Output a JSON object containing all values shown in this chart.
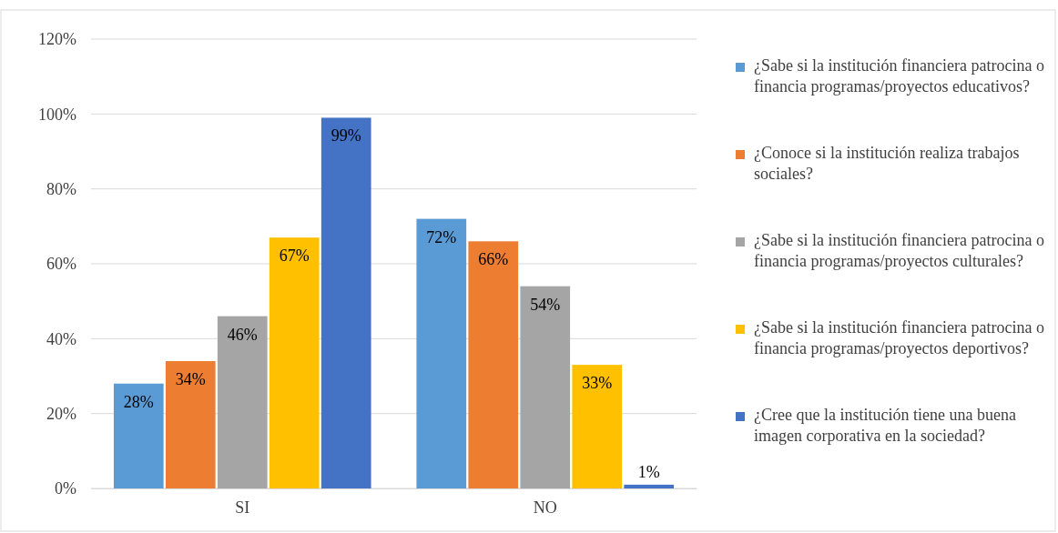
{
  "chart_data": {
    "type": "bar",
    "categories": [
      "SI",
      "NO"
    ],
    "series": [
      {
        "name": "¿Sabe si la institución financiera patrocina o financia programas/proyectos educativos?",
        "color": "#5b9bd5",
        "values": [
          28,
          72
        ],
        "value_labels": [
          "28%",
          "72%"
        ]
      },
      {
        "name": "¿Conoce si la institución realiza trabajos sociales?",
        "color": "#ed7d31",
        "values": [
          34,
          66
        ],
        "value_labels": [
          "34%",
          "66%"
        ]
      },
      {
        "name": "¿Sabe si la institución financiera patrocina o financia programas/proyectos culturales?",
        "color": "#a5a5a5",
        "values": [
          46,
          54
        ],
        "value_labels": [
          "46%",
          "54%"
        ]
      },
      {
        "name": "¿Sabe si la institución financiera patrocina o financia programas/proyectos deportivos?",
        "color": "#ffc000",
        "values": [
          67,
          33
        ],
        "value_labels": [
          "67%",
          "33%"
        ]
      },
      {
        "name": "¿Cree que la institución tiene una buena imagen corporativa en la sociedad?",
        "color": "#4472c4",
        "values": [
          99,
          1
        ],
        "value_labels": [
          "99%",
          "1%"
        ]
      }
    ],
    "ylim": [
      0,
      120
    ],
    "yticks": [
      {
        "value": 0,
        "label": "0%"
      },
      {
        "value": 20,
        "label": "20%"
      },
      {
        "value": 40,
        "label": "40%"
      },
      {
        "value": 60,
        "label": "60%"
      },
      {
        "value": 80,
        "label": "80%"
      },
      {
        "value": 100,
        "label": "100%"
      },
      {
        "value": 120,
        "label": "120%"
      }
    ],
    "grid": "y",
    "legend": "right"
  }
}
